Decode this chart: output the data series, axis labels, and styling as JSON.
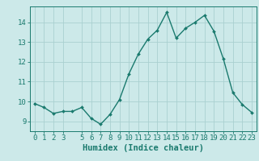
{
  "x": [
    0,
    1,
    2,
    3,
    4,
    5,
    6,
    7,
    8,
    9,
    10,
    11,
    12,
    13,
    14,
    15,
    16,
    17,
    18,
    19,
    20,
    21,
    22,
    23
  ],
  "y": [
    9.9,
    9.7,
    9.4,
    9.5,
    9.5,
    9.7,
    9.15,
    8.85,
    9.35,
    10.1,
    11.4,
    12.4,
    13.15,
    13.6,
    14.5,
    13.2,
    13.7,
    14.0,
    14.35,
    13.55,
    12.15,
    10.45,
    9.85,
    9.45
  ],
  "line_color": "#1a7a6e",
  "marker": "D",
  "marker_size": 2.0,
  "bg_color": "#cce9e9",
  "grid_color": "#aad0d0",
  "xlabel": "Humidex (Indice chaleur)",
  "ylim": [
    8.5,
    14.8
  ],
  "xlim": [
    -0.5,
    23.5
  ],
  "yticks": [
    9,
    10,
    11,
    12,
    13,
    14
  ],
  "xticks": [
    0,
    1,
    2,
    3,
    5,
    6,
    7,
    8,
    9,
    10,
    11,
    12,
    13,
    14,
    15,
    16,
    17,
    18,
    19,
    20,
    21,
    22,
    23
  ],
  "xlabel_fontsize": 7.5,
  "tick_fontsize": 6.5,
  "line_width": 1.0
}
